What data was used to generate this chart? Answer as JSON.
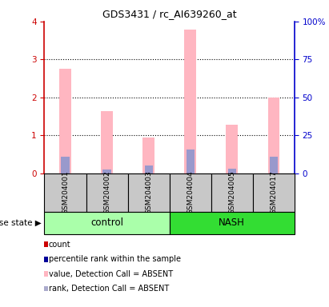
{
  "title": "GDS3431 / rc_AI639260_at",
  "samples": [
    "GSM204001",
    "GSM204002",
    "GSM204003",
    "GSM204004",
    "GSM204005",
    "GSM204017"
  ],
  "pink_values": [
    2.75,
    1.65,
    0.95,
    3.78,
    1.28,
    2.0
  ],
  "blue_rank_values": [
    0.45,
    0.1,
    0.2,
    0.62,
    0.12,
    0.45
  ],
  "ylim_left": [
    0,
    4
  ],
  "ylim_right": [
    0,
    100
  ],
  "yticks_left": [
    0,
    1,
    2,
    3,
    4
  ],
  "yticks_right": [
    0,
    25,
    50,
    75,
    100
  ],
  "ytick_labels_right": [
    "0",
    "25",
    "50",
    "75",
    "100%"
  ],
  "left_axis_color": "#CC0000",
  "right_axis_color": "#0000CC",
  "bar_width": 0.28,
  "pink_color": "#FFB6C1",
  "blue_color": "#9999CC",
  "bg_color": "#C8C8C8",
  "control_color": "#AAFFAA",
  "nash_color": "#33DD33",
  "legend_items": [
    {
      "label": "count",
      "color": "#CC0000"
    },
    {
      "label": "percentile rank within the sample",
      "color": "#000099"
    },
    {
      "label": "value, Detection Call = ABSENT",
      "color": "#FFB6C1"
    },
    {
      "label": "rank, Detection Call = ABSENT",
      "color": "#AAAACC"
    }
  ],
  "disease_state_label": "disease state"
}
